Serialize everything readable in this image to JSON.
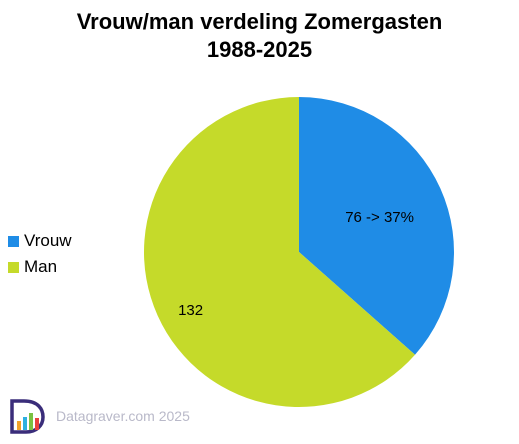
{
  "chart_data": {
    "type": "pie",
    "title_lines": [
      "Vrouw/man verdeling Zomergasten",
      "1988-2025"
    ],
    "slices": [
      {
        "name": "Vrouw",
        "value": 76,
        "label": "76 -> 37%",
        "color": "#1f8ce6"
      },
      {
        "name": "Man",
        "value": 132,
        "label": "132",
        "color": "#c5da2a"
      }
    ],
    "legend_placement": "left"
  },
  "footer": {
    "credit": "Datagraver.com 2025",
    "logo_icon": "datagraver-logo-icon"
  }
}
